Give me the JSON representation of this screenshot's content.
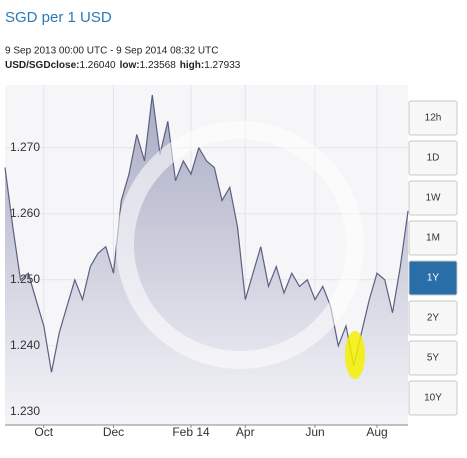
{
  "chart_data": {
    "type": "area",
    "title": "SGD per 1 USD",
    "subtitle": "9 Sep 2013 00:00 UTC - 9 Sep 2014 08:32 UTC",
    "pair": "USD/SGD",
    "stats": [
      {
        "label": "close:",
        "value": "1.26040"
      },
      {
        "label": "low:",
        "value": "1.23568"
      },
      {
        "label": "high:",
        "value": "1.27933"
      }
    ],
    "categories": [
      null,
      null,
      null,
      null,
      null,
      "Oct",
      null,
      null,
      null,
      null,
      null,
      null,
      null,
      null,
      "Dec",
      null,
      null,
      null,
      null,
      null,
      null,
      null,
      null,
      null,
      "Feb 14",
      null,
      null,
      null,
      null,
      null,
      null,
      "Apr",
      null,
      null,
      null,
      null,
      null,
      null,
      null,
      null,
      "Jun",
      null,
      null,
      null,
      null,
      null,
      null,
      null,
      "Aug",
      null,
      null,
      null,
      null
    ],
    "values": [
      1.267,
      1.258,
      1.25,
      1.251,
      1.247,
      1.243,
      1.236,
      1.242,
      1.246,
      1.25,
      1.247,
      1.252,
      1.254,
      1.255,
      1.251,
      1.262,
      1.266,
      1.272,
      1.268,
      1.278,
      1.269,
      1.274,
      1.265,
      1.268,
      1.266,
      1.27,
      1.268,
      1.267,
      1.262,
      1.264,
      1.258,
      1.247,
      1.251,
      1.255,
      1.249,
      1.252,
      1.248,
      1.251,
      1.249,
      1.25,
      1.247,
      1.249,
      1.246,
      1.24,
      1.243,
      1.237,
      1.242,
      1.247,
      1.251,
      1.25,
      1.245,
      1.252,
      1.2604
    ],
    "color": "#5b6080",
    "ylim": [
      1.228,
      1.2795
    ],
    "yticks": [
      {
        "value": 1.23,
        "label": "1.230"
      },
      {
        "value": 1.24,
        "label": "1.240"
      },
      {
        "value": 1.25,
        "label": "1.250"
      },
      {
        "value": 1.26,
        "label": "1.260"
      },
      {
        "value": 1.27,
        "label": "1.270"
      }
    ],
    "grid": true,
    "range_buttons": [
      "12h",
      "1D",
      "1W",
      "1M",
      "1Y",
      "2Y",
      "5Y",
      "10Y"
    ],
    "active_button": "1Y"
  }
}
